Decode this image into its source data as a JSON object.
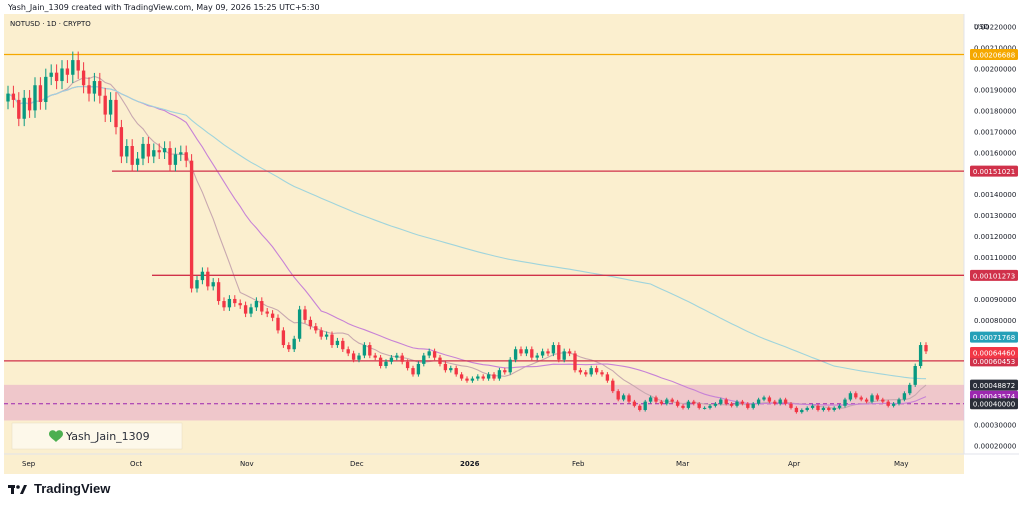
{
  "header_line": "Yash_Jain_1309 created with TradingView.com, May 09, 2026 15:25 UTC+5:30",
  "symbol_line": "NOTUSD · 1D · CRYPTO",
  "currency_label": "USD",
  "watermark_author": "Yash_Jain_1309",
  "brand": "TradingView",
  "colors": {
    "background": "#fbefcf",
    "axis_bg": "#ffffff",
    "up_candle": "#089981",
    "down_candle": "#f23645",
    "resistance_line": "#d0314a",
    "top_line": "#f5a800",
    "support_zone": "#e5a5c8",
    "ma_long": "#9fd4dc",
    "ma_mid": "#c782d6",
    "ma_short": "#c8a8b0"
  },
  "chart_data": {
    "type": "candlestick",
    "x_tick_labels": [
      "Sep",
      "Oct",
      "Nov",
      "Dec",
      "2026",
      "Feb",
      "Mar",
      "Apr",
      "May"
    ],
    "y_tick_labels": [
      "0.00220000",
      "0.00210000",
      "0.00200000",
      "0.00190000",
      "0.00180000",
      "0.00170000",
      "0.00160000",
      "0.00140000",
      "0.00130000",
      "0.00120000",
      "0.00110000",
      "0.00090000",
      "0.00080000",
      "0.00030000",
      "0.00020000"
    ],
    "ylim": [
      0.00016,
      0.00226
    ],
    "horizontal_levels": [
      {
        "value": 0.00206688,
        "label": "0.00206688",
        "color": "#f5a800"
      },
      {
        "value": 0.00151021,
        "label": "0.00151021",
        "color": "#d0314a"
      },
      {
        "value": 0.00101273,
        "label": "0.00101273",
        "color": "#d0314a"
      },
      {
        "value": 0.00060453,
        "label": "0.00060453",
        "color": "#d0314a"
      }
    ],
    "price_tags": [
      {
        "value": 0.00071768,
        "label": "0.00071768",
        "color": "#26a0b8"
      },
      {
        "value": 0.0006446,
        "label": "0.00064460",
        "color": "#f23645"
      },
      {
        "value": 0.00048872,
        "label": "0.00048872",
        "color": "#2a2e39"
      },
      {
        "value": 0.00043574,
        "label": "0.00043574",
        "color": "#9c27b0"
      },
      {
        "value": 0.0004,
        "label": "0.00040000",
        "color": "#2a2e39"
      }
    ],
    "support_zone": [
      0.00032,
      0.00049
    ],
    "dashed_level": 0.0004,
    "closes": [
      0.00188,
      0.00185,
      0.00176,
      0.00186,
      0.0018,
      0.00192,
      0.00184,
      0.00196,
      0.00198,
      0.00194,
      0.002,
      0.00197,
      0.00204,
      0.00199,
      0.00192,
      0.00188,
      0.00194,
      0.00187,
      0.00178,
      0.00185,
      0.00172,
      0.00158,
      0.00163,
      0.00154,
      0.00157,
      0.00164,
      0.00158,
      0.00161,
      0.0016,
      0.00162,
      0.00154,
      0.00159,
      0.0016,
      0.00156,
      0.00095,
      0.00099,
      0.00103,
      0.00096,
      0.00098,
      0.00089,
      0.00086,
      0.0009,
      0.00088,
      0.00087,
      0.00083,
      0.00086,
      0.00089,
      0.00084,
      0.00083,
      0.00081,
      0.00075,
      0.00068,
      0.00066,
      0.00071,
      0.00085,
      0.0008,
      0.00077,
      0.00075,
      0.00072,
      0.00073,
      0.00068,
      0.0007,
      0.00066,
      0.00064,
      0.00061,
      0.00063,
      0.00068,
      0.00063,
      0.00062,
      0.00058,
      0.0006,
      0.00062,
      0.00063,
      0.0006,
      0.00057,
      0.00054,
      0.00059,
      0.00063,
      0.00065,
      0.00062,
      0.00059,
      0.00056,
      0.00057,
      0.00054,
      0.00052,
      0.00051,
      0.00052,
      0.00053,
      0.00052,
      0.00054,
      0.00052,
      0.00056,
      0.00055,
      0.00061,
      0.00066,
      0.00064,
      0.00066,
      0.00062,
      0.00063,
      0.00065,
      0.00064,
      0.00068,
      0.00061,
      0.00065,
      0.00064,
      0.00056,
      0.00055,
      0.00054,
      0.00057,
      0.00055,
      0.00054,
      0.00051,
      0.00046,
      0.00042,
      0.00044,
      0.00041,
      0.00039,
      0.00037,
      0.00041,
      0.00043,
      0.00041,
      0.0004,
      0.00042,
      0.00041,
      0.00039,
      0.00038,
      0.00041,
      0.0004,
      0.00038,
      0.00038,
      0.00039,
      0.0004,
      0.00042,
      0.0004,
      0.00039,
      0.00041,
      0.0004,
      0.00038,
      0.0004,
      0.00042,
      0.00043,
      0.00041,
      0.0004,
      0.00042,
      0.0004,
      0.00038,
      0.00036,
      0.00037,
      0.00038,
      0.00039,
      0.00037,
      0.00038,
      0.00037,
      0.00038,
      0.00039,
      0.00042,
      0.00045,
      0.00043,
      0.00042,
      0.00041,
      0.00044,
      0.00042,
      0.00041,
      0.00039,
      0.0004,
      0.00042,
      0.00045,
      0.00049,
      0.00058,
      0.00068,
      0.00065
    ],
    "last_candles_note": ""
  }
}
